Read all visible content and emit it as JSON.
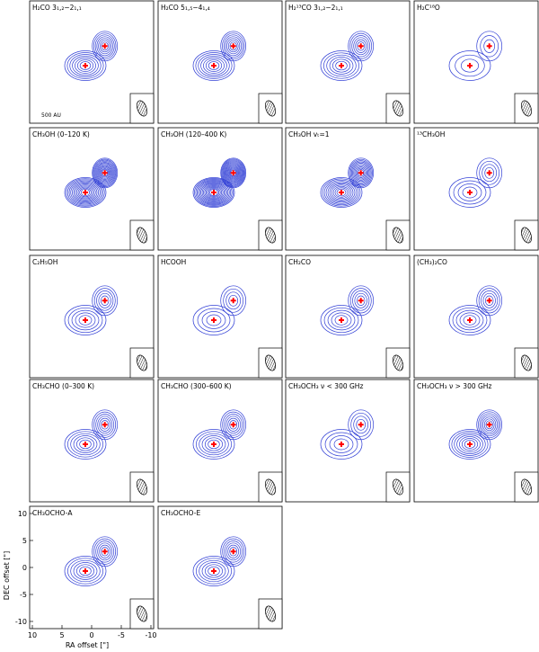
{
  "figure": {
    "xlabel": "RA offset [\"]",
    "ylabel": "DEC offset [\"]",
    "x_ticks": [
      "10",
      "5",
      "0",
      "-5",
      "-10"
    ],
    "y_ticks": [
      "10",
      "5",
      "0",
      "-5",
      "-10"
    ],
    "scale_bar_label": "500 AU",
    "contour_color": "#3341d6",
    "marker_color": "#ff0000"
  },
  "panels": [
    {
      "title": "H₂CO 3₁,₂−2₁,₁",
      "contours": 7,
      "source_a": [
        0,
        0
      ],
      "source_b": [
        -3.5,
        3.5
      ]
    },
    {
      "title": "H₂CO 5₁,₅−4₁,₄",
      "contours": 7,
      "source_a": [
        0,
        0
      ],
      "source_b": [
        -3.5,
        3.5
      ]
    },
    {
      "title": "H₂¹³CO 3₁,₂−2₁,₁",
      "contours": 6,
      "source_a": [
        0,
        0
      ],
      "source_b": [
        -3.5,
        3.5
      ]
    },
    {
      "title": "H₂C¹⁸O",
      "contours": 3,
      "source_a": [
        0,
        0
      ],
      "source_b": [
        -3.5,
        3.5
      ]
    },
    {
      "title": "CH₃OH (0–120 K)",
      "contours": 12,
      "source_a": [
        0,
        0
      ],
      "source_b": [
        -3.5,
        3.5
      ]
    },
    {
      "title": "CH₃OH (120–400 K)",
      "contours": 14,
      "source_a": [
        0,
        0
      ],
      "source_b": [
        -3.5,
        3.5
      ]
    },
    {
      "title": "CH₃OH vₜ=1",
      "contours": 10,
      "source_a": [
        0,
        0
      ],
      "source_b": [
        -3.5,
        3.5
      ]
    },
    {
      "title": "¹³CH₃OH",
      "contours": 4,
      "source_a": [
        0,
        0
      ],
      "source_b": [
        -3.5,
        3.5
      ]
    },
    {
      "title": "C₂H₅OH",
      "contours": 5,
      "source_a": [
        0,
        0
      ],
      "source_b": [
        -3.5,
        3.5
      ]
    },
    {
      "title": "HCOOH",
      "contours": 4,
      "source_a": [
        0,
        0
      ],
      "source_b": [
        -3.5,
        3.5
      ]
    },
    {
      "title": "CH₂CO",
      "contours": 5,
      "source_a": [
        0,
        0
      ],
      "source_b": [
        -3.5,
        3.5
      ]
    },
    {
      "title": "(CH₃)₂CO",
      "contours": 5,
      "source_a": [
        0,
        0
      ],
      "source_b": [
        -3.5,
        3.5
      ]
    },
    {
      "title": "CH₃CHO (0–300 K)",
      "contours": 6,
      "source_a": [
        0,
        0
      ],
      "source_b": [
        -3.5,
        3.5
      ]
    },
    {
      "title": "CH₃CHO (300–600 K)",
      "contours": 6,
      "source_a": [
        0,
        0
      ],
      "source_b": [
        -3.5,
        3.5
      ]
    },
    {
      "title": "CH₃OCH₃ ν < 300 GHz",
      "contours": 4,
      "source_a": [
        0,
        0
      ],
      "source_b": [
        -3.5,
        3.5
      ]
    },
    {
      "title": "CH₃OCH₃ ν > 300 GHz",
      "contours": 7,
      "source_a": [
        0,
        0
      ],
      "source_b": [
        -3.5,
        3.5
      ]
    },
    {
      "title": "CH₃OCHO-A",
      "contours": 6,
      "source_a": [
        0,
        0
      ],
      "source_b": [
        -3.5,
        3.5
      ]
    },
    {
      "title": "CH₃OCHO-E",
      "contours": 6,
      "source_a": [
        0,
        0
      ],
      "source_b": [
        -3.5,
        3.5
      ]
    }
  ]
}
